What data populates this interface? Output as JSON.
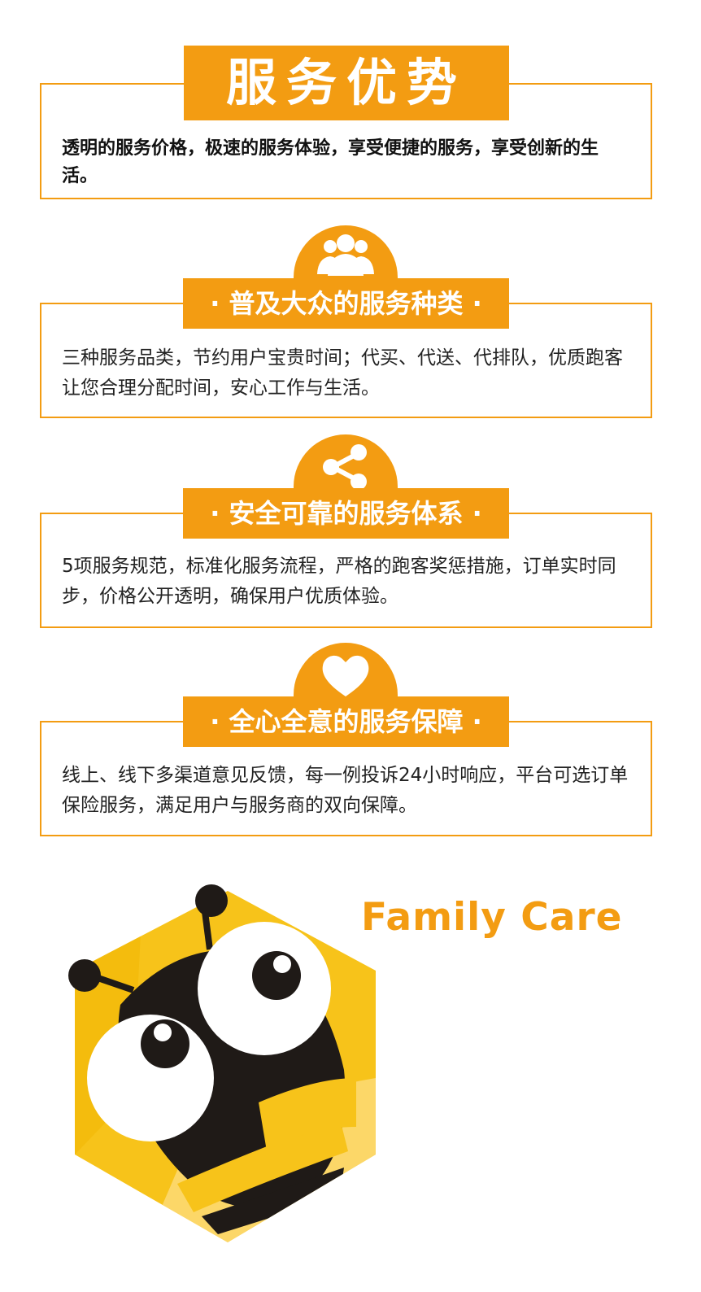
{
  "header": {
    "title": "服务优势",
    "description": "透明的服务价格，极速的服务体验，享受便捷的服务，享受创新的生活。"
  },
  "sections": [
    {
      "icon": "users-icon",
      "title": "· 普及大众的服务种类 ·",
      "description": "三种服务品类，节约用户宝贵时间；代买、代送、代排队，优质跑客让您合理分配时间，安心工作与生活。"
    },
    {
      "icon": "share-icon",
      "title": "· 安全可靠的服务体系 ·",
      "description": "5项服务规范，标准化服务流程，严格的跑客奖惩措施，订单实时同步，价格公开透明，确保用户优质体验。"
    },
    {
      "icon": "heart-icon",
      "title": "· 全心全意的服务保障 ·",
      "description": "线上、线下多渠道意见反馈，每一例投诉24小时响应，平台可选订单保险服务，满足用户与服务商的双向保障。"
    }
  ],
  "brand": {
    "name": "Family Care",
    "logo_icon": "bee-logo-icon"
  },
  "colors": {
    "accent": "#f39c12",
    "logo_yellow": "#f7c31a",
    "bee_dark": "#1f1a17"
  }
}
